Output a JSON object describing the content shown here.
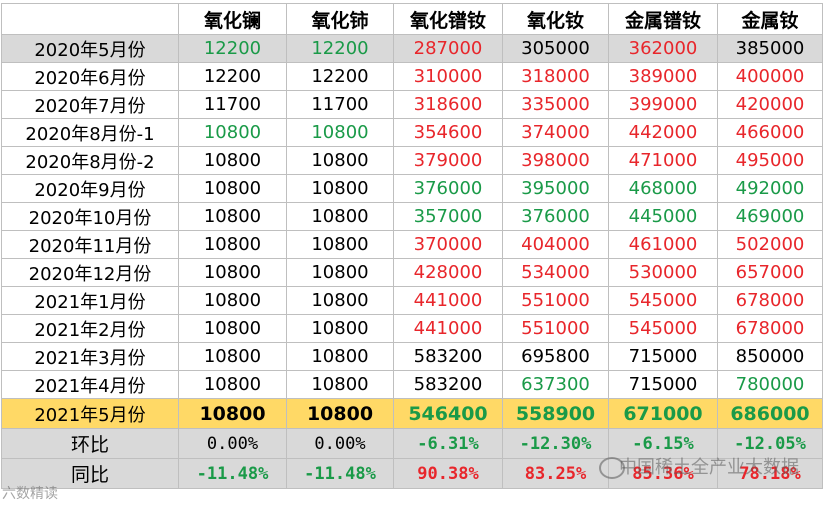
{
  "columns": [
    "",
    "氧化镧",
    "氧化铈",
    "氧化镨钕",
    "氧化钕",
    "金属镨钕",
    "金属钕"
  ],
  "colors": {
    "red": "#e8262b",
    "green": "#1a9a48",
    "highlight": "#ffd966",
    "gray": "#d9d9d9"
  },
  "rows": [
    {
      "label": "2020年5月份",
      "cells": [
        {
          "v": "12200",
          "c": "green"
        },
        {
          "v": "12200",
          "c": "green"
        },
        {
          "v": "287000",
          "c": "red"
        },
        {
          "v": "305000",
          "c": "black"
        },
        {
          "v": "362000",
          "c": "red"
        },
        {
          "v": "385000",
          "c": "black"
        }
      ]
    },
    {
      "label": "2020年6月份",
      "cells": [
        {
          "v": "12200",
          "c": "black"
        },
        {
          "v": "12200",
          "c": "black"
        },
        {
          "v": "310000",
          "c": "red"
        },
        {
          "v": "318000",
          "c": "red"
        },
        {
          "v": "389000",
          "c": "red"
        },
        {
          "v": "400000",
          "c": "red"
        }
      ]
    },
    {
      "label": "2020年7月份",
      "cells": [
        {
          "v": "11700",
          "c": "black"
        },
        {
          "v": "11700",
          "c": "black"
        },
        {
          "v": "318600",
          "c": "red"
        },
        {
          "v": "335000",
          "c": "red"
        },
        {
          "v": "399000",
          "c": "red"
        },
        {
          "v": "420000",
          "c": "red"
        }
      ]
    },
    {
      "label": "2020年8月份-1",
      "cells": [
        {
          "v": "10800",
          "c": "green"
        },
        {
          "v": "10800",
          "c": "green"
        },
        {
          "v": "354600",
          "c": "red"
        },
        {
          "v": "374000",
          "c": "red"
        },
        {
          "v": "442000",
          "c": "red"
        },
        {
          "v": "466000",
          "c": "red"
        }
      ]
    },
    {
      "label": "2020年8月份-2",
      "cells": [
        {
          "v": "10800",
          "c": "black"
        },
        {
          "v": "10800",
          "c": "black"
        },
        {
          "v": "379000",
          "c": "red"
        },
        {
          "v": "398000",
          "c": "red"
        },
        {
          "v": "471000",
          "c": "red"
        },
        {
          "v": "495000",
          "c": "red"
        }
      ]
    },
    {
      "label": "2020年9月份",
      "cells": [
        {
          "v": "10800",
          "c": "black"
        },
        {
          "v": "10800",
          "c": "black"
        },
        {
          "v": "376000",
          "c": "green"
        },
        {
          "v": "395000",
          "c": "green"
        },
        {
          "v": "468000",
          "c": "green"
        },
        {
          "v": "492000",
          "c": "green"
        }
      ]
    },
    {
      "label": "2020年10月份",
      "cells": [
        {
          "v": "10800",
          "c": "black"
        },
        {
          "v": "10800",
          "c": "black"
        },
        {
          "v": "357000",
          "c": "green"
        },
        {
          "v": "376000",
          "c": "green"
        },
        {
          "v": "445000",
          "c": "green"
        },
        {
          "v": "469000",
          "c": "green"
        }
      ]
    },
    {
      "label": "2020年11月份",
      "cells": [
        {
          "v": "10800",
          "c": "black"
        },
        {
          "v": "10800",
          "c": "black"
        },
        {
          "v": "370000",
          "c": "red"
        },
        {
          "v": "404000",
          "c": "red"
        },
        {
          "v": "461000",
          "c": "red"
        },
        {
          "v": "502000",
          "c": "red"
        }
      ]
    },
    {
      "label": "2020年12月份",
      "cells": [
        {
          "v": "10800",
          "c": "black"
        },
        {
          "v": "10800",
          "c": "black"
        },
        {
          "v": "428000",
          "c": "red"
        },
        {
          "v": "534000",
          "c": "red"
        },
        {
          "v": "530000",
          "c": "red"
        },
        {
          "v": "657000",
          "c": "red"
        }
      ]
    },
    {
      "label": "2021年1月份",
      "cells": [
        {
          "v": "10800",
          "c": "black"
        },
        {
          "v": "10800",
          "c": "black"
        },
        {
          "v": "441000",
          "c": "red"
        },
        {
          "v": "551000",
          "c": "red"
        },
        {
          "v": "545000",
          "c": "red"
        },
        {
          "v": "678000",
          "c": "red"
        }
      ]
    },
    {
      "label": "2021年2月份",
      "cells": [
        {
          "v": "10800",
          "c": "black"
        },
        {
          "v": "10800",
          "c": "black"
        },
        {
          "v": "441000",
          "c": "red"
        },
        {
          "v": "551000",
          "c": "red"
        },
        {
          "v": "545000",
          "c": "red"
        },
        {
          "v": "678000",
          "c": "red"
        }
      ]
    },
    {
      "label": "2021年3月份",
      "cells": [
        {
          "v": "10800",
          "c": "black"
        },
        {
          "v": "10800",
          "c": "black"
        },
        {
          "v": "583200",
          "c": "black"
        },
        {
          "v": "695800",
          "c": "black"
        },
        {
          "v": "715000",
          "c": "black"
        },
        {
          "v": "850000",
          "c": "black"
        }
      ]
    },
    {
      "label": "2021年4月份",
      "cells": [
        {
          "v": "10800",
          "c": "black"
        },
        {
          "v": "10800",
          "c": "black"
        },
        {
          "v": "583200",
          "c": "black"
        },
        {
          "v": "637300",
          "c": "green"
        },
        {
          "v": "715000",
          "c": "black"
        },
        {
          "v": "780000",
          "c": "green"
        }
      ]
    },
    {
      "label": "2021年5月份",
      "cells": [
        {
          "v": "10800",
          "c": "black"
        },
        {
          "v": "10800",
          "c": "black"
        },
        {
          "v": "546400",
          "c": "green"
        },
        {
          "v": "558900",
          "c": "green"
        },
        {
          "v": "671000",
          "c": "green"
        },
        {
          "v": "686000",
          "c": "green"
        }
      ]
    }
  ],
  "summary": [
    {
      "label": "环比",
      "cells": [
        {
          "v": "0.00%",
          "c": "black",
          "b": false
        },
        {
          "v": "0.00%",
          "c": "black",
          "b": false
        },
        {
          "v": "-6.31%",
          "c": "green",
          "b": true
        },
        {
          "v": "-12.30%",
          "c": "green",
          "b": true
        },
        {
          "v": "-6.15%",
          "c": "green",
          "b": true
        },
        {
          "v": "-12.05%",
          "c": "green",
          "b": true
        }
      ]
    },
    {
      "label": "同比",
      "cells": [
        {
          "v": "-11.48%",
          "c": "green",
          "b": true
        },
        {
          "v": "-11.48%",
          "c": "green",
          "b": true
        },
        {
          "v": "90.38%",
          "c": "red",
          "b": true
        },
        {
          "v": "83.25%",
          "c": "red",
          "b": true
        },
        {
          "v": "85.36%",
          "c": "red",
          "b": true
        },
        {
          "v": "78.18%",
          "c": "red",
          "b": true
        }
      ]
    }
  ],
  "watermarks": {
    "right": "中国稀土全产业大数据",
    "left": "六数精读"
  }
}
